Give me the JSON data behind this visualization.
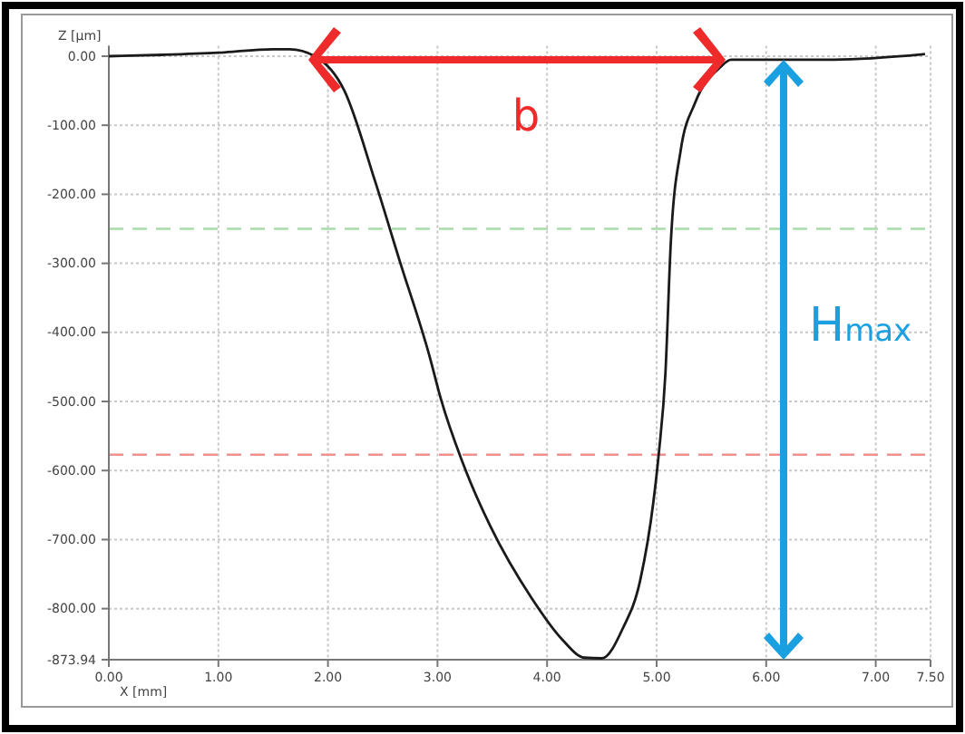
{
  "chart_data": {
    "type": "line",
    "xlabel": "X [mm]",
    "ylabel": "Z [µm]",
    "series": [
      {
        "color": "#1a1a1a",
        "x": [
          0,
          0.5,
          1.0,
          1.5,
          1.65,
          1.88,
          2.15,
          2.43,
          2.65,
          2.93,
          3.03,
          3.26,
          3.48,
          3.86,
          4.14,
          4.34,
          4.5,
          4.69,
          4.85,
          4.97,
          5.02,
          5.08,
          5.13,
          5.22,
          5.35,
          5.58,
          5.68,
          6.0,
          6.62,
          7.45
        ],
        "values": [
          0,
          2,
          5,
          10,
          10,
          0,
          -50,
          -181,
          -294,
          -436,
          -496,
          -601,
          -680,
          -785,
          -845,
          -871,
          -872,
          -829,
          -759,
          -646,
          -575,
          -460,
          -268,
          -136,
          -68,
          -16,
          -5,
          -5,
          -5,
          3
        ]
      }
    ],
    "xlim": [
      0,
      7.5
    ],
    "ylim": [
      -873.94,
      15
    ],
    "xticks": [
      {
        "value": 0,
        "label": "0.00"
      },
      {
        "value": 1,
        "label": "1.00"
      },
      {
        "value": 2,
        "label": "2.00"
      },
      {
        "value": 3,
        "label": "3.00"
      },
      {
        "value": 4,
        "label": "4.00"
      },
      {
        "value": 5,
        "label": "5.00"
      },
      {
        "value": 6,
        "label": "6.00"
      },
      {
        "value": 7,
        "label": "7.00"
      },
      {
        "value": 7.5,
        "label": "7.50"
      }
    ],
    "yticks": [
      {
        "value": 0,
        "label": "0.00"
      },
      {
        "value": -100,
        "label": "-100.00"
      },
      {
        "value": -200,
        "label": "-200.00"
      },
      {
        "value": -300,
        "label": "-300.00"
      },
      {
        "value": -400,
        "label": "-400.00"
      },
      {
        "value": -500,
        "label": "-500.00"
      },
      {
        "value": -600,
        "label": "-600.00"
      },
      {
        "value": -700,
        "label": "-700.00"
      },
      {
        "value": -800,
        "label": "-800.00"
      },
      {
        "value": -873.94,
        "label": "-873.94"
      }
    ],
    "grid": true,
    "marker": "none",
    "line_style": "solid",
    "ref_lines": [
      {
        "axis": "y",
        "value": -250,
        "color": "#a8dca8",
        "line_style": "dashed"
      },
      {
        "axis": "y",
        "value": -577,
        "color": "#f29090",
        "line_style": "dashed"
      }
    ],
    "annotations": [
      "b",
      "Hmax"
    ]
  }
}
